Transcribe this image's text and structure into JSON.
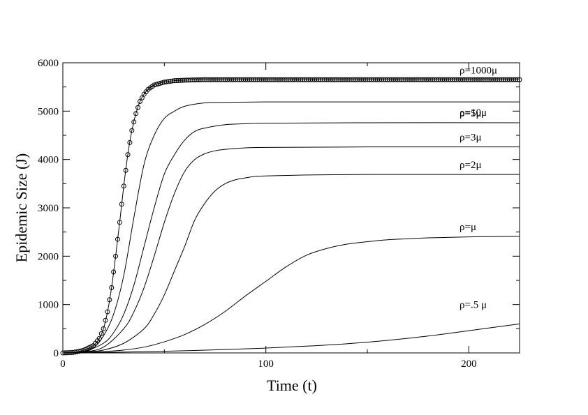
{
  "chart_data": {
    "type": "line",
    "title": "",
    "xlabel": "Time (t)",
    "ylabel": "Epidemic Size (J)",
    "xlim": [
      0,
      225
    ],
    "ylim": [
      0,
      6000
    ],
    "xticks": [
      0,
      100,
      200
    ],
    "yticks": [
      0,
      1000,
      2000,
      3000,
      4000,
      5000,
      6000
    ],
    "grid": false,
    "series": [
      {
        "name": "ρ=1000μ",
        "markers": "open-circle",
        "x": [
          0,
          5,
          10,
          15,
          18,
          20,
          22,
          24,
          26,
          28,
          30,
          32,
          34,
          36,
          38,
          40,
          42,
          45,
          50,
          55,
          60,
          70,
          80,
          100,
          150,
          200,
          225
        ],
        "y": [
          0,
          10,
          50,
          150,
          300,
          500,
          850,
          1350,
          2000,
          2700,
          3450,
          4100,
          4600,
          4950,
          5200,
          5350,
          5450,
          5540,
          5600,
          5630,
          5640,
          5650,
          5650,
          5650,
          5650,
          5650,
          5650
        ]
      },
      {
        "name": "ρ=10μ",
        "x": [
          0,
          10,
          15,
          20,
          25,
          30,
          35,
          40,
          45,
          50,
          55,
          60,
          70,
          80,
          100,
          150,
          225
        ],
        "y": [
          0,
          30,
          100,
          350,
          800,
          1600,
          2800,
          3900,
          4500,
          4850,
          5000,
          5100,
          5170,
          5180,
          5190,
          5190,
          5190
        ]
      },
      {
        "name": "ρ=5μ",
        "x": [
          0,
          10,
          20,
          25,
          30,
          35,
          40,
          45,
          50,
          55,
          60,
          65,
          70,
          80,
          90,
          100,
          150,
          225
        ],
        "y": [
          0,
          25,
          200,
          420,
          800,
          1400,
          2200,
          3000,
          3700,
          4100,
          4400,
          4580,
          4650,
          4720,
          4740,
          4750,
          4760,
          4760
        ]
      },
      {
        "name": "ρ=3μ",
        "x": [
          0,
          10,
          20,
          30,
          35,
          40,
          45,
          50,
          55,
          60,
          65,
          70,
          75,
          80,
          90,
          100,
          150,
          225
        ],
        "y": [
          0,
          20,
          120,
          500,
          850,
          1350,
          2000,
          2700,
          3300,
          3750,
          4000,
          4120,
          4180,
          4210,
          4240,
          4250,
          4260,
          4260
        ]
      },
      {
        "name": "ρ=2μ",
        "x": [
          0,
          10,
          20,
          30,
          40,
          45,
          50,
          55,
          60,
          65,
          70,
          75,
          80,
          85,
          90,
          95,
          100,
          110,
          120,
          150,
          225
        ],
        "y": [
          0,
          15,
          60,
          200,
          500,
          800,
          1200,
          1700,
          2200,
          2750,
          3100,
          3350,
          3500,
          3580,
          3620,
          3650,
          3660,
          3670,
          3680,
          3690,
          3690
        ]
      },
      {
        "name": "ρ=μ",
        "x": [
          0,
          20,
          30,
          40,
          50,
          60,
          70,
          80,
          90,
          100,
          110,
          120,
          130,
          140,
          150,
          160,
          170,
          180,
          200,
          225
        ],
        "y": [
          0,
          30,
          60,
          120,
          230,
          380,
          590,
          860,
          1180,
          1480,
          1780,
          2020,
          2160,
          2250,
          2300,
          2340,
          2360,
          2380,
          2400,
          2410
        ]
      },
      {
        "name": "ρ=.5 μ",
        "x": [
          0,
          20,
          40,
          60,
          80,
          100,
          120,
          140,
          160,
          180,
          200,
          225
        ],
        "y": [
          0,
          10,
          25,
          45,
          70,
          100,
          140,
          190,
          260,
          350,
          460,
          600
        ]
      }
    ]
  }
}
